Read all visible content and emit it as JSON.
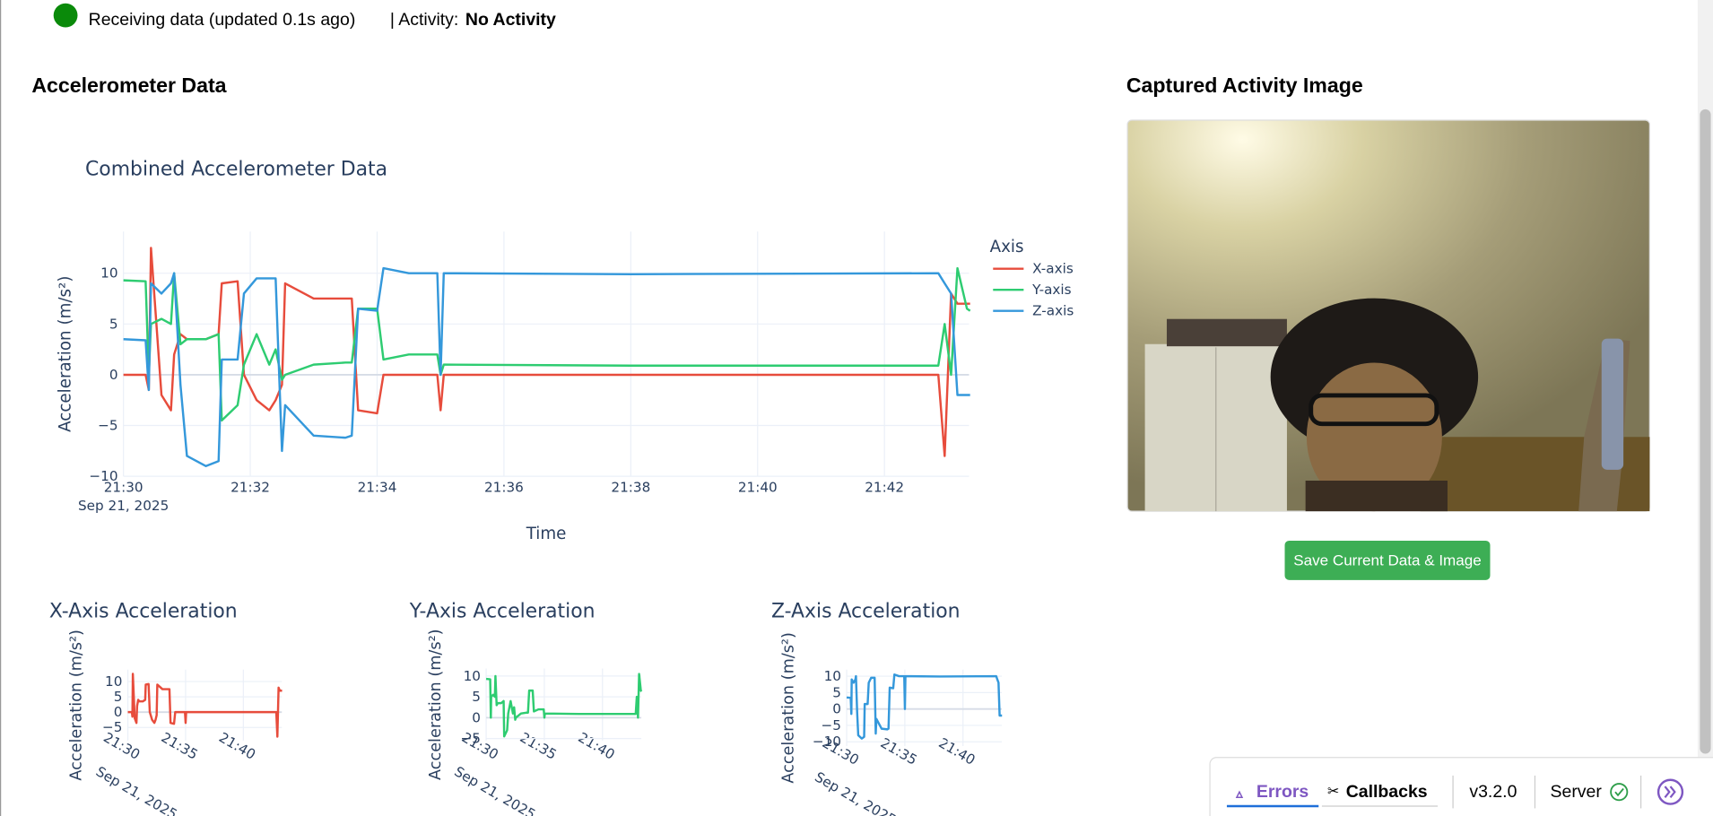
{
  "status": {
    "text": "Receiving data (updated 0.1s ago)",
    "activity_label": "| Activity:",
    "activity": "No Activity"
  },
  "accelerometer": {
    "heading": "Accelerometer Data",
    "combined": {
      "type": "line",
      "title": "Combined Accelerometer Data",
      "x_label": "Time",
      "y_label": "Acceleration (m/s²)",
      "legend_title": "Axis",
      "x": [
        "21:30:00",
        "21:30:21",
        "21:30:24",
        "21:30:26",
        "21:30:36",
        "21:30:45",
        "21:30:48",
        "21:30:54",
        "21:31:00",
        "21:31:18",
        "21:31:30",
        "21:31:33",
        "21:31:48",
        "21:31:54",
        "21:32:06",
        "21:32:18",
        "21:32:24",
        "21:32:30",
        "21:32:33",
        "21:33:00",
        "21:33:30",
        "21:33:36",
        "21:33:42",
        "21:34:00",
        "21:34:06",
        "21:34:30",
        "21:34:57",
        "21:35:00",
        "21:35:03",
        "21:38:00",
        "21:42:51",
        "21:42:57",
        "21:43:03",
        "21:43:09",
        "21:43:18",
        "21:43:21"
      ],
      "series": [
        {
          "name": "X-axis",
          "color": "#e74c3c",
          "values": [
            0,
            0,
            -1.5,
            12.5,
            -2,
            -3.5,
            2,
            4,
            3.5,
            3.5,
            4,
            9,
            9.2,
            0,
            -2.5,
            -3.5,
            -2.5,
            -1,
            9,
            7.5,
            7.5,
            7.5,
            -3.5,
            -3.8,
            0,
            0,
            0,
            -3.5,
            0,
            0,
            0,
            -8,
            8,
            7,
            7,
            7
          ]
        },
        {
          "name": "Y-axis",
          "color": "#2ecc71",
          "values": [
            9.3,
            9.2,
            0,
            5,
            5.5,
            5,
            10,
            3,
            3.5,
            3.5,
            4,
            -4.5,
            -3,
            1,
            4,
            1,
            2.5,
            -0.5,
            0,
            1,
            1.2,
            1.2,
            6.5,
            6.5,
            1.5,
            2,
            2,
            0,
            1,
            0.9,
            0.9,
            5,
            0,
            10.5,
            6.5,
            6.3
          ]
        },
        {
          "name": "Z-axis",
          "color": "#3498db",
          "values": [
            3.5,
            3.4,
            -1.5,
            9,
            8,
            9,
            10,
            -1,
            -8,
            -9,
            -8.5,
            1.5,
            1.5,
            8,
            9.5,
            9.5,
            9.5,
            -7.5,
            -3,
            -6,
            -6.2,
            -6,
            6.5,
            6.3,
            10.5,
            10,
            10,
            0,
            10,
            9.9,
            10,
            9,
            8,
            -2,
            -2,
            -2
          ]
        }
      ],
      "xlim": [
        "21:30:00",
        "21:43:20"
      ],
      "xticks": [
        {
          "value": "21:30:00",
          "label": "21:30"
        },
        {
          "value": "21:32:00",
          "label": "21:32"
        },
        {
          "value": "21:34:00",
          "label": "21:34"
        },
        {
          "value": "21:36:00",
          "label": "21:36"
        },
        {
          "value": "21:38:00",
          "label": "21:38"
        },
        {
          "value": "21:40:00",
          "label": "21:40"
        },
        {
          "value": "21:42:00",
          "label": "21:42"
        }
      ],
      "x_date_label": "Sep 21, 2025",
      "ylim": [
        -10,
        14.1
      ],
      "yticks": [
        {
          "value": -10,
          "label": "−10"
        },
        {
          "value": -5,
          "label": "−5"
        },
        0,
        5,
        10
      ],
      "grid": true
    },
    "axis_charts": [
      {
        "title": "X-Axis Acceleration",
        "y_label": "Acceleration (m/s²)",
        "xlim": [
          "21:30:00",
          "21:43:20"
        ],
        "xticks": [
          {
            "value": "21:30:00",
            "label": "21:30"
          },
          {
            "value": "21:35:00",
            "label": "21:35"
          },
          {
            "value": "21:40:00",
            "label": "21:40"
          }
        ],
        "x_date_label": "Sep 21, 2025",
        "ylim": [
          -9.3,
          13.9
        ],
        "yticks": [
          {
            "value": -5,
            "label": "−5"
          },
          0,
          5,
          10
        ]
      },
      {
        "title": "Y-Axis Acceleration",
        "y_label": "Acceleration (m/s²)",
        "xlim": [
          "21:30:00",
          "21:43:20"
        ],
        "xticks": [
          {
            "value": "21:30:00",
            "label": "21:30"
          },
          {
            "value": "21:35:00",
            "label": "21:35"
          },
          {
            "value": "21:40:00",
            "label": "21:40"
          }
        ],
        "x_date_label": "Sep 21, 2025",
        "ylim": [
          -5.5,
          11.8
        ],
        "yticks": [
          {
            "value": -5,
            "label": "−5"
          },
          0,
          5,
          10
        ]
      },
      {
        "title": "Z-Axis Acceleration",
        "y_label": "Acceleration (m/s²)",
        "xlim": [
          "21:30:00",
          "21:43:20"
        ],
        "xticks": [
          {
            "value": "21:30:00",
            "label": "21:30"
          },
          {
            "value": "21:35:00",
            "label": "21:35"
          },
          {
            "value": "21:40:00",
            "label": "21:40"
          }
        ],
        "x_date_label": "Sep 21, 2025",
        "ylim": [
          -11.3,
          12
        ],
        "yticks": [
          {
            "value": -10,
            "label": "−10"
          },
          {
            "value": -5,
            "label": "−5"
          },
          0,
          5,
          10
        ]
      }
    ]
  },
  "image_panel": {
    "heading": "Captured Activity Image",
    "button": "Save Current Data & Image"
  },
  "devtools": {
    "errors": "Errors",
    "callbacks": "Callbacks",
    "version": "v3.2.0",
    "server": "Server"
  }
}
